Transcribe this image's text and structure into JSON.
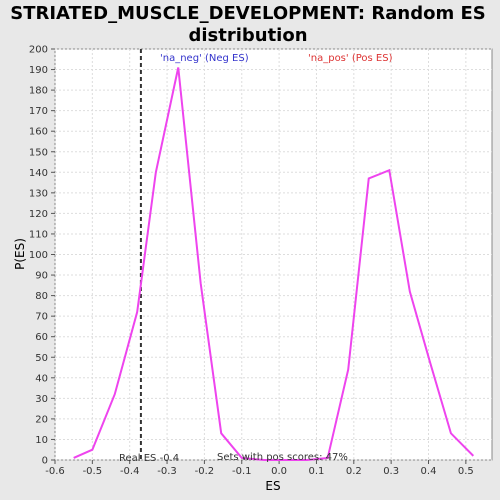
{
  "chart_data": {
    "type": "line",
    "title_line1": "STRIATED_MUSCLE_DEVELOPMENT: Random ES",
    "title_line2": "distribution",
    "xlabel": "ES",
    "ylabel": "P(ES)",
    "xlim": [
      -0.6,
      0.57
    ],
    "ylim": [
      0,
      200
    ],
    "xticks": [
      "-0.6",
      "-0.5",
      "-0.4",
      "-0.3",
      "-0.2",
      "-0.1",
      "0.0",
      "0.1",
      "0.2",
      "0.3",
      "0.4",
      "0.5"
    ],
    "xtick_values": [
      -0.6,
      -0.5,
      -0.4,
      -0.3,
      -0.2,
      -0.1,
      0.0,
      0.1,
      0.2,
      0.3,
      0.4,
      0.5
    ],
    "yticks": [
      0,
      10,
      20,
      30,
      40,
      50,
      60,
      70,
      80,
      90,
      100,
      110,
      120,
      130,
      140,
      150,
      160,
      170,
      180,
      190,
      200
    ],
    "grid": true,
    "series": [
      {
        "color": "#ee44ee",
        "x": [
          -0.55,
          -0.5,
          -0.44,
          -0.38,
          -0.33,
          -0.27,
          -0.21,
          -0.155,
          -0.1,
          -0.04,
          0.02,
          0.075,
          0.13,
          0.185,
          0.24,
          0.295,
          0.35,
          0.405,
          0.46,
          0.52
        ],
        "y": [
          1,
          5,
          32,
          72,
          140,
          191,
          86,
          13,
          1,
          0,
          0,
          0,
          1,
          44,
          137,
          141,
          82,
          47,
          13,
          2
        ]
      }
    ],
    "real_es": {
      "value": -0.37,
      "label": "Real ES -0.4"
    },
    "annotations": {
      "neg": {
        "text": "'na_neg' (Neg ES)",
        "color": "#3333cc"
      },
      "pos": {
        "text": "'na_pos' (Pos ES)",
        "color": "#dd3333"
      },
      "pos_scores": {
        "text": "Sets with pos scores: 47%",
        "color": "#333333"
      }
    }
  }
}
